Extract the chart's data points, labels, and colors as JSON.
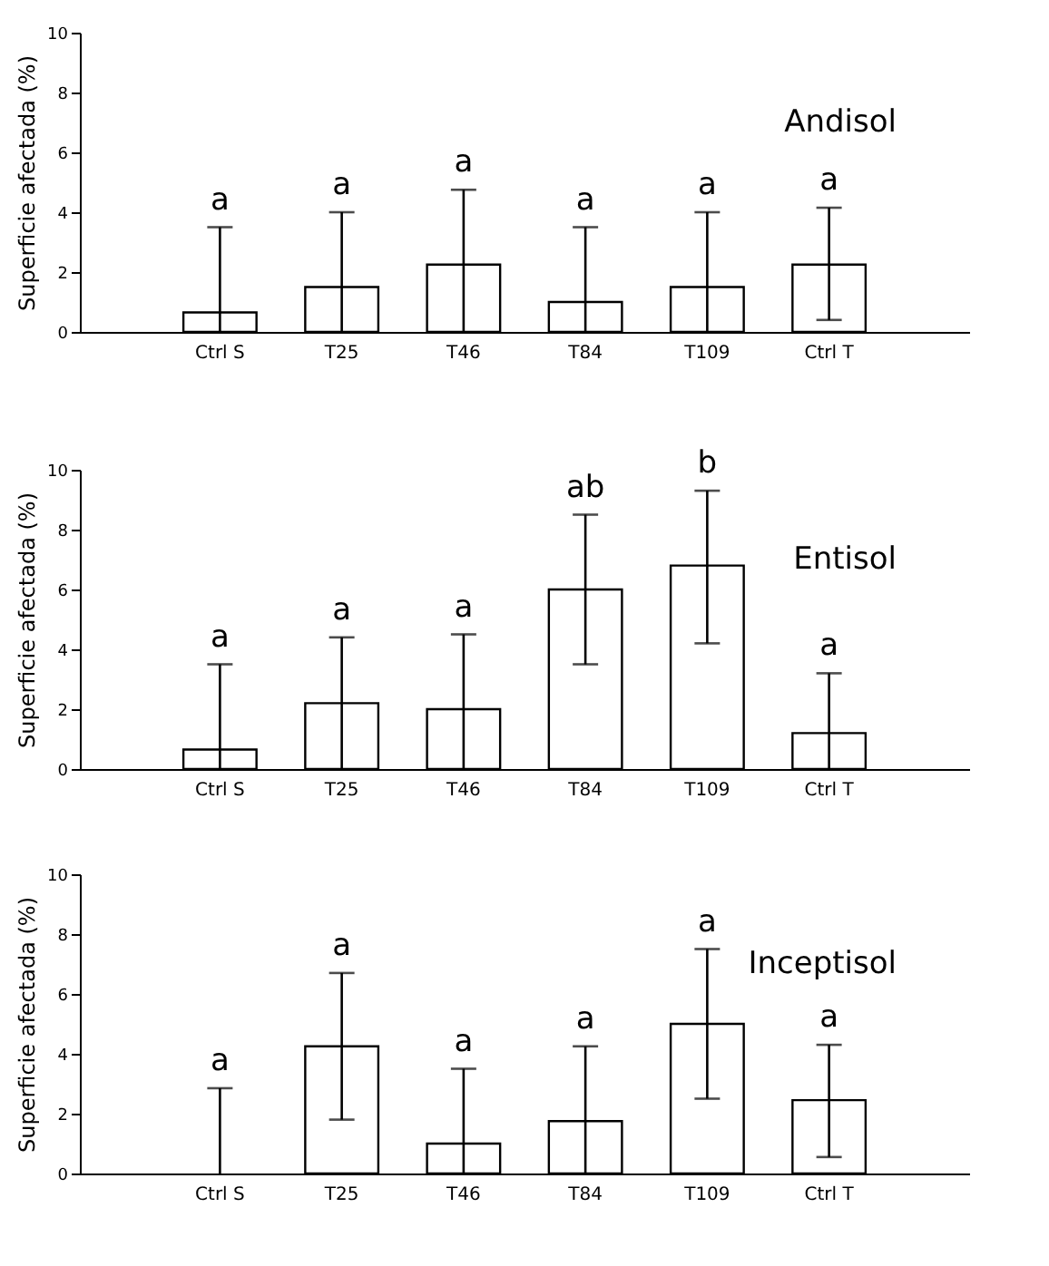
{
  "chart_data": [
    {
      "type": "bar",
      "categories": [
        "Ctrl S",
        "T25",
        "T46",
        "T84",
        "T109",
        "Ctrl T"
      ],
      "values": [
        0.65,
        1.5,
        2.25,
        1.0,
        1.5,
        2.25
      ],
      "color": "#ffffff",
      "errors": [
        [
          0,
          3.5
        ],
        [
          0,
          4.0
        ],
        [
          0,
          4.75
        ],
        [
          0,
          3.5
        ],
        [
          0,
          4.0
        ],
        [
          0.4,
          4.15
        ]
      ],
      "ylabel": "Superficie afectada (%)",
      "ylim": [
        0,
        10
      ],
      "yticks": [
        0,
        2,
        4,
        6,
        8,
        10
      ],
      "annotations": [
        "Andisol",
        {
          "text": "a",
          "x": "Ctrl S",
          "y": 3.5
        },
        {
          "text": "a",
          "x": "T25",
          "y": 4.0
        },
        {
          "text": "a",
          "x": "T46",
          "y": 4.75
        },
        {
          "text": "a",
          "x": "T84",
          "y": 3.5
        },
        {
          "text": "a",
          "x": "T109",
          "y": 4.0
        },
        {
          "text": "a",
          "x": "Ctrl T",
          "y": 4.15
        }
      ]
    },
    {
      "type": "bar",
      "categories": [
        "Ctrl S",
        "T25",
        "T46",
        "T84",
        "T109",
        "Ctrl T"
      ],
      "values": [
        0.65,
        2.2,
        2.0,
        6.0,
        6.8,
        1.2
      ],
      "color": "#ffffff",
      "errors": [
        [
          0,
          3.5
        ],
        [
          0,
          4.4
        ],
        [
          0,
          4.5
        ],
        [
          3.5,
          8.5
        ],
        [
          4.2,
          9.3
        ],
        [
          0,
          3.2
        ]
      ],
      "ylabel": "Superficie afectada (%)",
      "ylim": [
        0,
        10
      ],
      "yticks": [
        0,
        2,
        4,
        6,
        8,
        10
      ],
      "annotations": [
        "Entisol",
        {
          "text": "a",
          "x": "Ctrl S",
          "y": 3.5
        },
        {
          "text": "a",
          "x": "T25",
          "y": 4.4
        },
        {
          "text": "a",
          "x": "T46",
          "y": 4.5
        },
        {
          "text": "ab",
          "x": "T84",
          "y": 8.5
        },
        {
          "text": "b",
          "x": "T109",
          "y": 9.3
        },
        {
          "text": "a",
          "x": "Ctrl T",
          "y": 3.2
        }
      ]
    },
    {
      "type": "bar",
      "categories": [
        "Ctrl S",
        "T25",
        "T46",
        "T84",
        "T109",
        "Ctrl T"
      ],
      "values": [
        0,
        4.25,
        1.0,
        1.75,
        5.0,
        2.45
      ],
      "color": "#ffffff",
      "errors": [
        [
          0,
          2.85
        ],
        [
          1.8,
          6.7
        ],
        [
          0,
          3.5
        ],
        [
          0,
          4.25
        ],
        [
          2.5,
          7.5
        ],
        [
          0.55,
          4.3
        ]
      ],
      "ylabel": "Superficie afectada (%)",
      "ylim": [
        0,
        10
      ],
      "yticks": [
        0,
        2,
        4,
        6,
        8,
        10
      ],
      "annotations": [
        "Inceptisol",
        {
          "text": "a",
          "x": "Ctrl S",
          "y": 2.85
        },
        {
          "text": "a",
          "x": "T25",
          "y": 6.7
        },
        {
          "text": "a",
          "x": "T46",
          "y": 3.5
        },
        {
          "text": "a",
          "x": "T84",
          "y": 4.25
        },
        {
          "text": "a",
          "x": "T109",
          "y": 7.5
        },
        {
          "text": "a",
          "x": "Ctrl T",
          "y": 4.3
        }
      ]
    }
  ]
}
